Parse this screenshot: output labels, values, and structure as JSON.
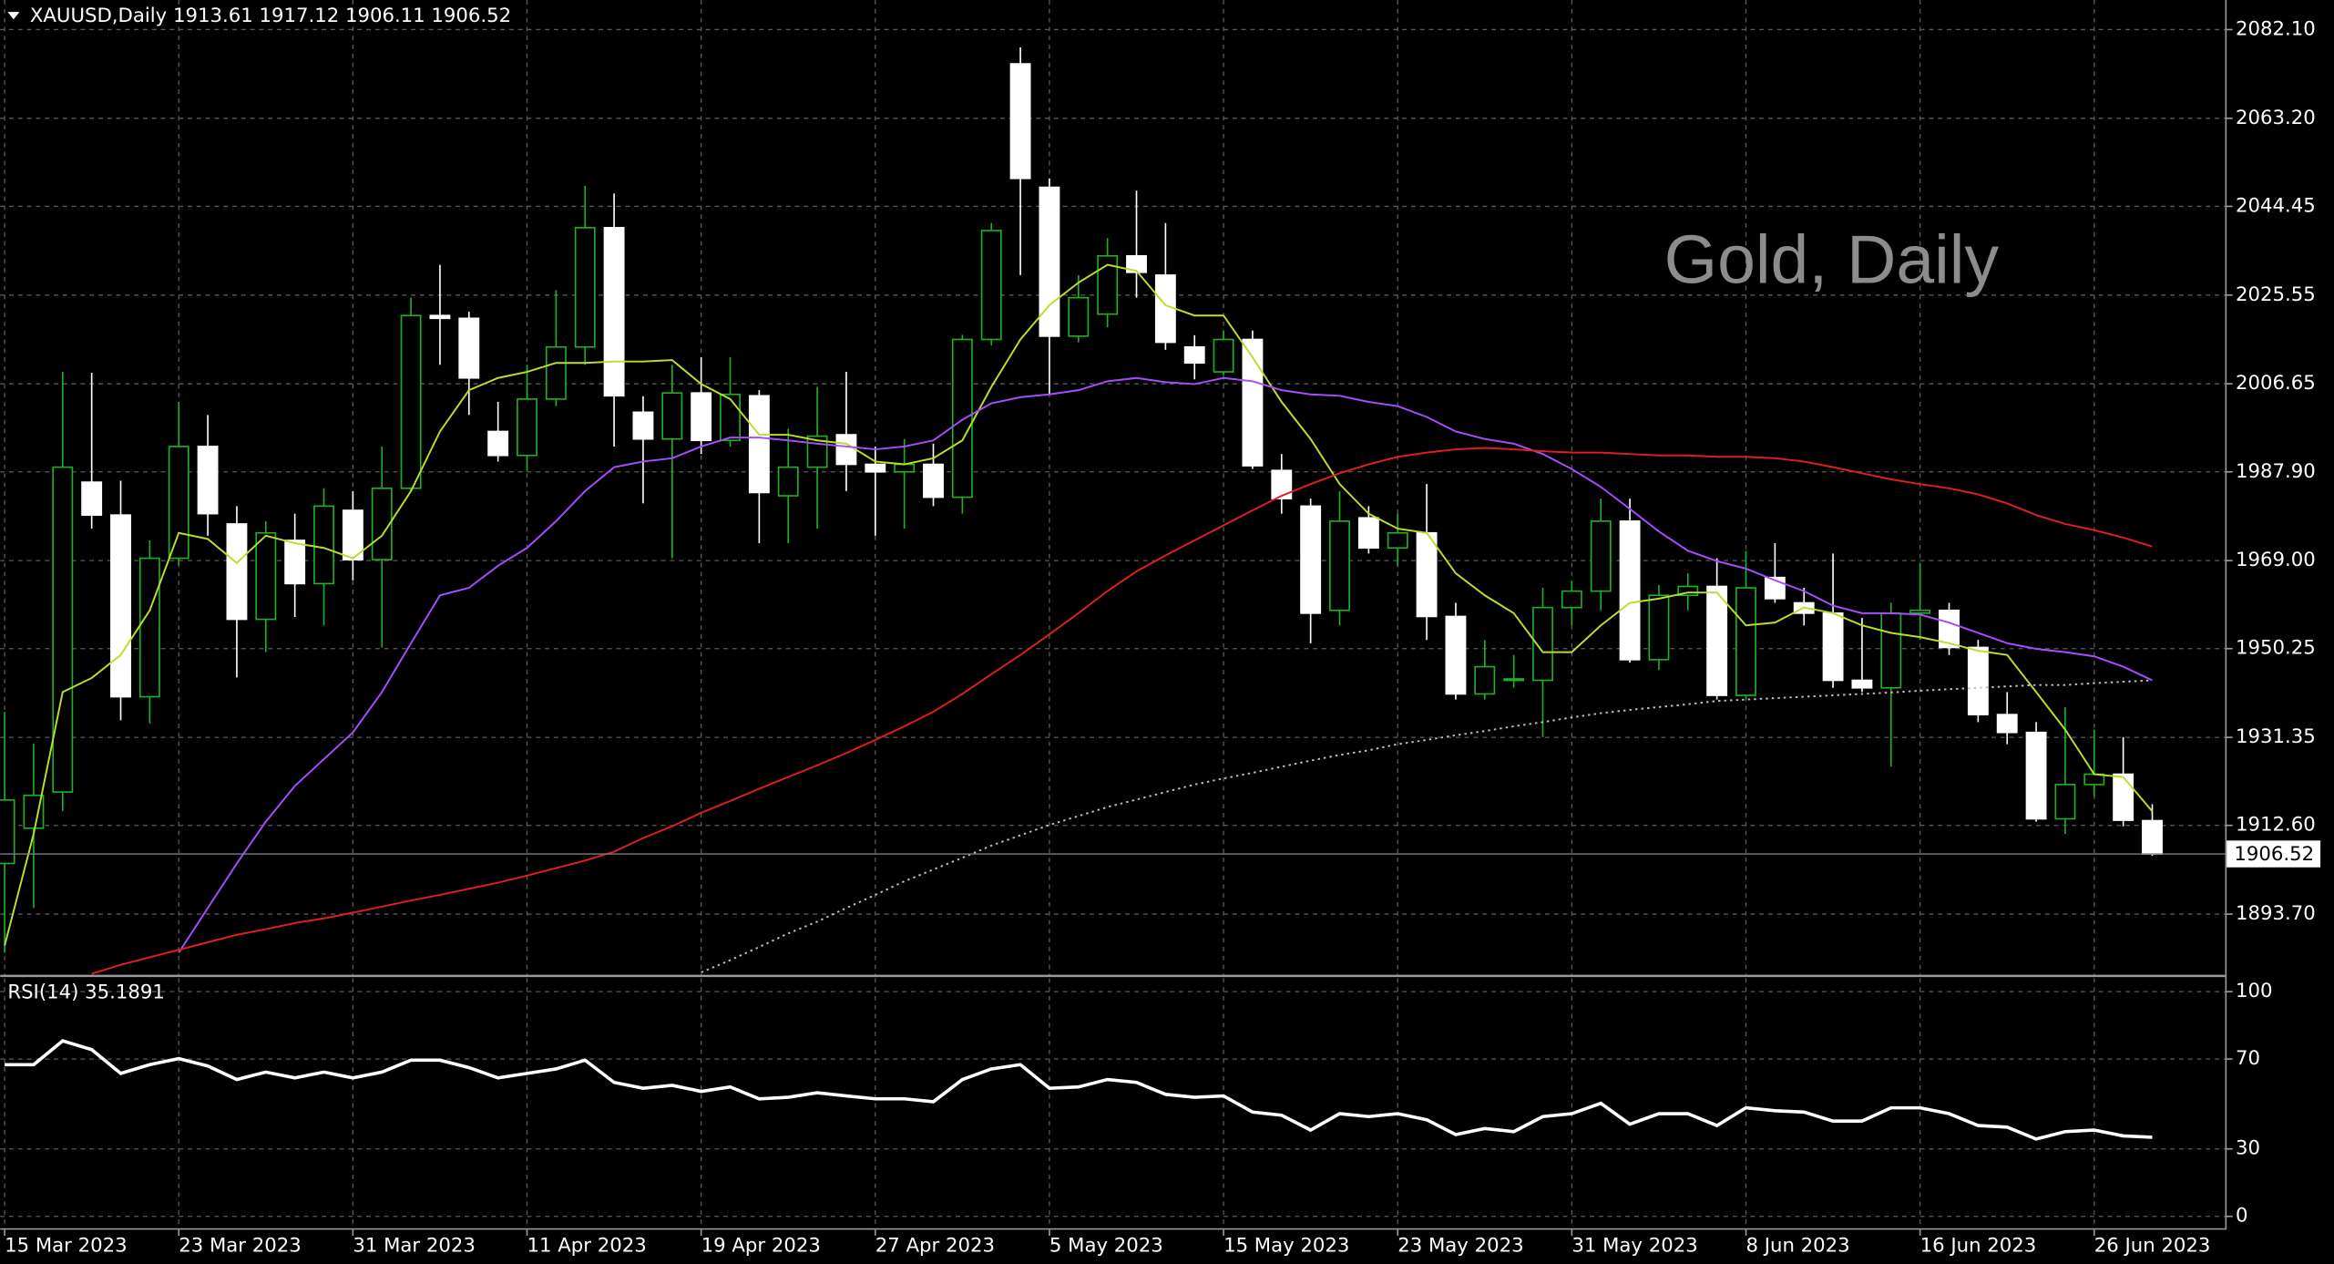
{
  "chart_data": [
    {
      "type": "candlestick",
      "title": "XAUUSD,Daily  1913.61 1917.12 1906.11 1906.52",
      "watermark": "Gold, Daily",
      "categories": [
        "15 Mar 2023",
        null,
        null,
        null,
        null,
        null,
        "23 Mar 2023",
        null,
        null,
        null,
        null,
        null,
        "31 Mar 2023",
        null,
        null,
        null,
        null,
        null,
        "11 Apr 2023",
        null,
        null,
        null,
        null,
        null,
        "19 Apr 2023",
        null,
        null,
        null,
        null,
        null,
        "27 Apr 2023",
        null,
        null,
        null,
        null,
        null,
        "5 May 2023",
        null,
        null,
        null,
        null,
        null,
        "15 May 2023",
        null,
        null,
        null,
        null,
        null,
        "23 May 2023",
        null,
        null,
        null,
        null,
        null,
        "31 May 2023",
        null,
        null,
        null,
        null,
        null,
        "8 Jun 2023",
        null,
        null,
        null,
        null,
        null,
        "16 Jun 2023",
        null,
        null,
        null,
        null,
        null,
        "26 Jun 2023",
        null,
        null
      ],
      "open": [
        1904.5,
        1912,
        1919.7,
        1985.7,
        1978.7,
        1940,
        1969.5,
        1993.3,
        1976.8,
        1956.5,
        1973.3,
        1964.1,
        1979.7,
        1969.2,
        1984.4,
        2021.2,
        2020.6,
        1996.5,
        1991.4,
        2003.4,
        2014.5,
        2039.9,
        2000.6,
        1994.9,
        2004.7,
        1994.6,
        2004.1,
        1982.8,
        1988.9,
        1995.8,
        1989.5,
        1987.9,
        1989.5,
        1982.5,
        2016.1,
        2074.8,
        2048.5,
        2016.8,
        2021.5,
        2033.9,
        2029.8,
        2014.5,
        2009.2,
        2016.1,
        1988.2,
        1980.6,
        1958.4,
        1978.1,
        1971.7,
        1974.9,
        1957.1,
        1940.6,
        1943.5,
        1943.5,
        1959,
        1962.5,
        1977.4,
        1947.9,
        1961.6,
        1963.5,
        1940.3,
        1965.4,
        1960,
        1957.8,
        1943.5,
        1941.9,
        1957.8,
        1958.4,
        1950.5,
        1936.2,
        1932.4,
        1914,
        1921.3,
        1923.5,
        1913.61
      ],
      "high": [
        1936.8,
        1930,
        2009.2,
        2009,
        1986,
        1973.3,
        2002.8,
        2000,
        1980.6,
        1977.4,
        1979,
        1984.4,
        1983.8,
        1993.3,
        2025,
        2032,
        2022,
        2002.8,
        2010.7,
        2026.6,
        2048.8,
        2047.2,
        2004,
        2010.7,
        2012.3,
        2012.3,
        2005.3,
        1997.1,
        2006,
        2009.2,
        1993.3,
        1994.9,
        1993.9,
        2017.1,
        2040.9,
        2078.3,
        2050.4,
        2029.8,
        2037.7,
        2047.8,
        2040.9,
        2017,
        2018,
        2018,
        1991.7,
        1982.2,
        1983.8,
        1980.6,
        1979,
        1985.3,
        1960,
        1952.1,
        1948.9,
        1963.2,
        1964.7,
        1982.2,
        1982.2,
        1963.8,
        1966.3,
        1969.5,
        1971.1,
        1972.7,
        1963.2,
        1970.5,
        1956.8,
        1960,
        1968.5,
        1960,
        1952.1,
        1941,
        1934.6,
        1937.8,
        1933,
        1931.4,
        1917.12
      ],
      "low": [
        1885.5,
        1895,
        1915.6,
        1975.8,
        1935,
        1934.3,
        1968,
        1974.3,
        1944.1,
        1949.5,
        1957,
        1955.2,
        1964.8,
        1950.5,
        1983.8,
        2010.7,
        2000,
        1990.1,
        1988,
        2001.9,
        2010.7,
        1993.3,
        1981.2,
        1969.5,
        1991.7,
        1993.3,
        1972.7,
        1972.7,
        1975.8,
        1983.8,
        1974.3,
        1975.8,
        1980.6,
        1979,
        2014.8,
        2029.8,
        2004.4,
        2015.5,
        2018.7,
        2025,
        2013.9,
        2007.6,
        2008.5,
        1988.5,
        1979,
        1951.4,
        1955.2,
        1970.5,
        1967.9,
        1952.1,
        1939.4,
        1939.4,
        1941.9,
        1931.4,
        1955.2,
        1958.4,
        1947.3,
        1945.7,
        1958.4,
        1939.4,
        1939.4,
        1960,
        1955.2,
        1941.9,
        1941,
        1925.1,
        1952.1,
        1948.9,
        1934.6,
        1929.9,
        1913.4,
        1910.8,
        1918.8,
        1912.4,
        1906.11
      ],
      "close": [
        1918,
        1919,
        1988.9,
        1978.7,
        1940,
        1969.5,
        1993.3,
        1979,
        1956.5,
        1974.9,
        1964.1,
        1980.6,
        1969.2,
        1984.4,
        2021.2,
        2020.6,
        2007.9,
        1991.4,
        2003.4,
        2014.5,
        2039.9,
        2004.1,
        1994.9,
        2004.7,
        1994.6,
        2004.4,
        1983.5,
        1988.9,
        1995.5,
        1989.5,
        1987.9,
        1989.5,
        1982.5,
        2016.1,
        2039.3,
        2050.4,
        2016.8,
        2025,
        2033.9,
        2030.4,
        2015.5,
        2011.1,
        2016.1,
        1989.2,
        1982.2,
        1957.8,
        1977.4,
        1971.7,
        1974.9,
        1957.1,
        1940.6,
        1946.4,
        1943.8,
        1959,
        1962.5,
        1977.4,
        1947.9,
        1961.6,
        1963.5,
        1940.3,
        1963.2,
        1960.9,
        1957.8,
        1943.5,
        1941.9,
        1957.8,
        1958.4,
        1950.5,
        1936.2,
        1932.4,
        1914,
        1921.3,
        1923.5,
        1913.7,
        1906.52
      ],
      "up_color": "#20b020",
      "down_color": "#ffffff",
      "series": [
        {
          "color": "#b8e02a",
          "line_style": "solid",
          "values": [
            1887,
            1910.8,
            1941,
            1944,
            1948.9,
            1958.4,
            1974.9,
            1973.6,
            1968.5,
            1974.3,
            1972.7,
            1971.7,
            1969.5,
            1974.3,
            1983.8,
            1996.5,
            2005.3,
            2007.9,
            2009.2,
            2011.1,
            2011.1,
            2011.4,
            2011.4,
            2011.7,
            2006.6,
            2003.4,
            1995.8,
            1995.8,
            1994.6,
            1993.9,
            1990.1,
            1989.5,
            1990.8,
            1994.6,
            2006,
            2016.1,
            2023.4,
            2028.2,
            2032,
            2030.7,
            2023.4,
            2021.2,
            2021.2,
            2012.3,
            2002.8,
            1994.9,
            1985.3,
            1979,
            1975.8,
            1974.9,
            1966.3,
            1961.6,
            1957.8,
            1949.5,
            1949.5,
            1955.2,
            1960,
            1960.9,
            1962.2,
            1962.2,
            1955.2,
            1955.8,
            1959,
            1957.8,
            1955.2,
            1953.6,
            1952.7,
            1951.4,
            1949.8,
            1948.9,
            1941,
            1933,
            1923.5,
            1922.9,
            1915.6
          ]
        },
        {
          "color": "#a64dff",
          "line_style": "solid",
          "values": [
            null,
            null,
            null,
            null,
            null,
            null,
            1885.5,
            1895,
            1904.5,
            1913.4,
            1921,
            1926.7,
            1932.4,
            1941,
            1951.4,
            1961.6,
            1963.2,
            1967.9,
            1971.7,
            1977.4,
            1983.8,
            1988.9,
            1990.1,
            1990.8,
            1993.3,
            1995.2,
            1995.2,
            1994.6,
            1993.9,
            1993.3,
            1992.7,
            1993.3,
            1994.6,
            1999,
            2002.5,
            2003.8,
            2004.4,
            2005.3,
            2007.2,
            2007.9,
            2007,
            2006.6,
            2007.9,
            2007.2,
            2005.3,
            2004.4,
            2004.1,
            2002.8,
            2001.9,
            1999.6,
            1996.5,
            1994.9,
            1993.9,
            1991.7,
            1988.5,
            1984.7,
            1980,
            1975.2,
            1971.1,
            1968.9,
            1967.3,
            1964.8,
            1962.5,
            1959.4,
            1957.8,
            1957.8,
            1957.5,
            1955.8,
            1953.6,
            1951.4,
            1950.2,
            1949.5,
            1948.6,
            1946.4,
            1943.5
          ]
        },
        {
          "color": "#e01e1e",
          "line_style": "solid",
          "values": [
            null,
            null,
            null,
            1881,
            1882.9,
            1884.5,
            1886.1,
            1887.7,
            1889.3,
            1890.5,
            1891.8,
            1892.8,
            1894,
            1895.3,
            1896.6,
            1897.8,
            1899.1,
            1900.4,
            1901.9,
            1903.5,
            1905.1,
            1907,
            1909.9,
            1912.4,
            1915.3,
            1917.8,
            1920.4,
            1922.9,
            1925.4,
            1928,
            1930.8,
            1933.7,
            1936.8,
            1940.6,
            1944.8,
            1948.9,
            1953.3,
            1957.8,
            1962.5,
            1966.7,
            1970.1,
            1973.3,
            1976.5,
            1979.7,
            1982.8,
            1985.3,
            1987.6,
            1989.5,
            1991.1,
            1992,
            1992.7,
            1993,
            1992.7,
            1992.3,
            1992,
            1992,
            1991.7,
            1991.4,
            1991.4,
            1991.1,
            1991.1,
            1990.8,
            1990.1,
            1988.9,
            1987.6,
            1986.3,
            1985.3,
            1984.4,
            1983.1,
            1981.2,
            1978.7,
            1976.8,
            1975.5,
            1973.9,
            1972
          ]
        },
        {
          "color": "#bdbdbd",
          "line_style": "dotted",
          "values": [
            null,
            null,
            null,
            null,
            null,
            null,
            null,
            null,
            null,
            null,
            null,
            null,
            null,
            null,
            null,
            null,
            null,
            null,
            null,
            null,
            null,
            null,
            null,
            null,
            1881.3,
            1883.9,
            1886.7,
            1889.6,
            1892.1,
            1895,
            1897.8,
            1900.7,
            1903.2,
            1905.7,
            1908.3,
            1910.5,
            1912.7,
            1914.6,
            1916.5,
            1918.1,
            1919.7,
            1921.3,
            1922.6,
            1923.8,
            1925.1,
            1926.4,
            1927.6,
            1928.6,
            1929.9,
            1930.8,
            1931.8,
            1932.7,
            1933.7,
            1934.6,
            1935.6,
            1936.5,
            1937.2,
            1937.8,
            1938.4,
            1939.1,
            1939.4,
            1939.7,
            1940,
            1940.3,
            1940.6,
            1940.9,
            1941.3,
            1941.6,
            1941.9,
            1942.2,
            1942.5,
            1942.5,
            1942.9,
            1943.2,
            1943.5
          ]
        }
      ],
      "ylim": [
        1880.7,
        2088.4
      ],
      "yticks": [
        {
          "value": 2082.1,
          "label": "2082.10"
        },
        {
          "value": 2063.2,
          "label": "2063.20"
        },
        {
          "value": 2044.45,
          "label": "2044.45"
        },
        {
          "value": 2025.55,
          "label": "2025.55"
        },
        {
          "value": 2006.65,
          "label": "2006.65"
        },
        {
          "value": 1987.9,
          "label": "1987.90"
        },
        {
          "value": 1969,
          "label": "1969.00"
        },
        {
          "value": 1950.25,
          "label": "1950.25"
        },
        {
          "value": 1931.35,
          "label": "1931.35"
        },
        {
          "value": 1912.6,
          "label": "1912.60"
        },
        {
          "value": 1893.7,
          "label": "1893.70"
        }
      ],
      "grid": true
    },
    {
      "type": "line",
      "title": "RSI(14) 35.1891",
      "series": [
        {
          "color": "#ffffff",
          "line_style": "solid",
          "values": [
            67.5,
            67.5,
            78.1,
            74.2,
            63.6,
            67.5,
            70.2,
            66.9,
            60.9,
            64.2,
            61.6,
            64.2,
            61.6,
            64.2,
            69.5,
            69.5,
            66.2,
            61.6,
            63.6,
            65.6,
            69.5,
            59.6,
            57,
            58.3,
            55.6,
            57.6,
            52.3,
            53,
            55,
            53.6,
            52.3,
            52.3,
            51,
            60.9,
            65.6,
            67.5,
            57,
            57.6,
            60.9,
            59.6,
            54.3,
            53,
            53.6,
            46.4,
            45,
            38.4,
            45.7,
            44.4,
            45.7,
            43,
            36.4,
            39.1,
            37.7,
            44.4,
            45.7,
            50.3,
            41,
            45.7,
            45.7,
            40.4,
            48.3,
            47,
            46.4,
            42.4,
            42.4,
            48.3,
            48.3,
            45.7,
            40.4,
            39.7,
            34.4,
            37.7,
            38.4,
            35.8,
            35.1891
          ]
        }
      ],
      "ylim": [
        -5.3,
        106
      ],
      "yticks": [
        100,
        70,
        30,
        0
      ],
      "grid": true
    }
  ]
}
